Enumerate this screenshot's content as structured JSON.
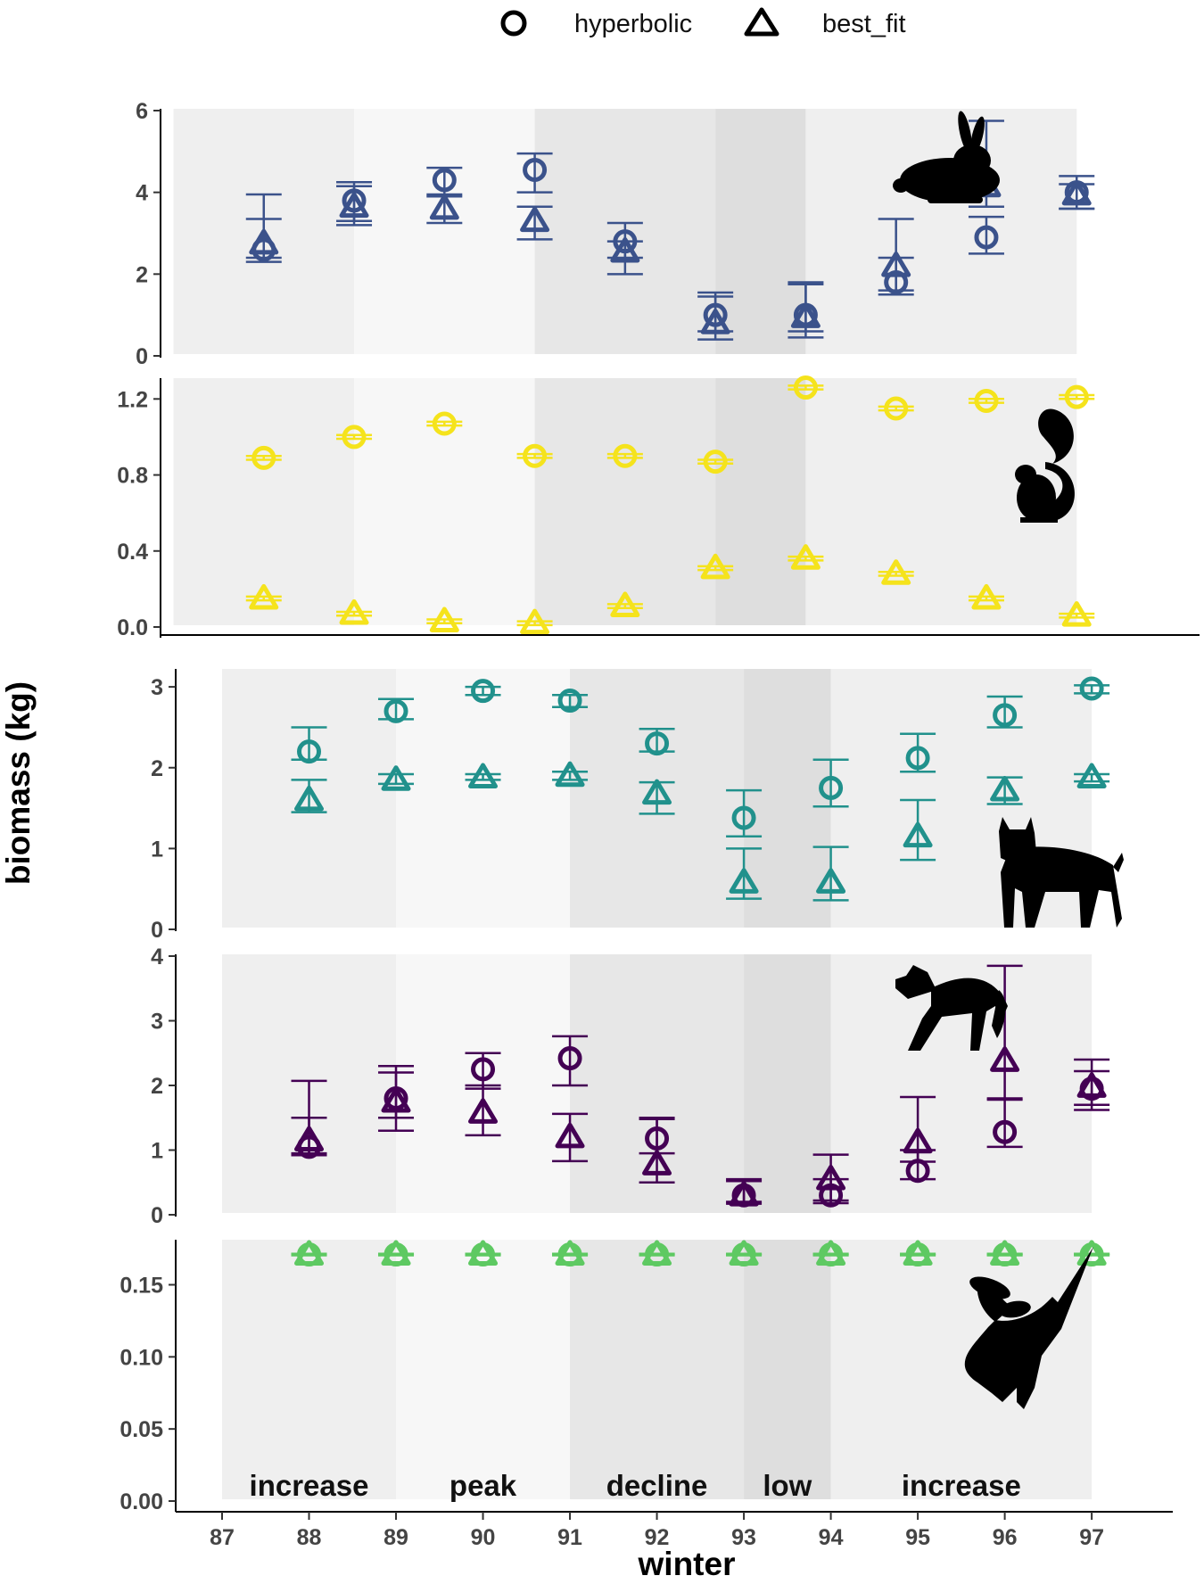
{
  "chart_data": {
    "type": "scatter",
    "xlabel": "winter",
    "ylabel": "biomass (kg)",
    "x_ticks": [
      "87",
      "88",
      "89",
      "90",
      "91",
      "92",
      "93",
      "94",
      "95",
      "96",
      "97"
    ],
    "legend": {
      "placement": "top",
      "entries": [
        {
          "name": "hyperbolic",
          "shape": "circle"
        },
        {
          "name": "best_fit",
          "shape": "triangle"
        }
      ]
    },
    "phases": [
      {
        "label": "increase",
        "from": 87,
        "to": 89,
        "shade": "#efefef"
      },
      {
        "label": "peak",
        "from": 89,
        "to": 91,
        "shade": "#f7f7f7"
      },
      {
        "label": "decline",
        "from": 91,
        "to": 93,
        "shade": "#e7e7e7"
      },
      {
        "label": "low",
        "from": 93,
        "to": 94,
        "shade": "#dedede"
      },
      {
        "label": "increase",
        "from": 94,
        "to": 97,
        "shade": "#efefef"
      }
    ],
    "panels": [
      {
        "id": "hare",
        "silhouette": "hare-silhouette-icon",
        "color": "#3b528b",
        "ylim": [
          0,
          6
        ],
        "y_ticks": [
          "0",
          "2",
          "4",
          "6"
        ],
        "series": [
          {
            "name": "hyperbolic",
            "shape": "circle",
            "x": [
              88,
              89,
              90,
              91,
              92,
              93,
              94,
              95,
              96,
              97
            ],
            "y": [
              2.6,
              3.8,
              4.3,
              4.55,
              2.8,
              1.0,
              1.0,
              1.8,
              2.9,
              4.0
            ],
            "lo": [
              2.3,
              3.3,
              3.9,
              4.0,
              2.4,
              0.6,
              0.6,
              1.5,
              2.5,
              3.6
            ],
            "hi": [
              3.35,
              4.25,
              4.6,
              4.95,
              3.25,
              1.55,
              1.75,
              2.4,
              3.4,
              4.4
            ]
          },
          {
            "name": "best_fit",
            "shape": "triangle",
            "x": [
              88,
              89,
              90,
              91,
              92,
              93,
              94,
              95,
              96,
              97
            ],
            "y": [
              2.75,
              3.65,
              3.6,
              3.3,
              2.55,
              0.8,
              0.95,
              2.2,
              4.15,
              3.95
            ],
            "lo": [
              2.4,
              3.2,
              3.25,
              2.85,
              2.0,
              0.4,
              0.45,
              1.6,
              3.65,
              3.6
            ],
            "hi": [
              3.95,
              4.15,
              3.95,
              3.65,
              2.8,
              1.45,
              1.8,
              3.35,
              5.75,
              4.2
            ]
          }
        ]
      },
      {
        "id": "squirrel",
        "silhouette": "squirrel-silhouette-icon",
        "color": "#f5e31c",
        "ylim": [
          0,
          1.3
        ],
        "y_ticks": [
          "0.0",
          "0.4",
          "0.8",
          "1.2"
        ],
        "series": [
          {
            "name": "hyperbolic",
            "shape": "circle",
            "x": [
              88,
              89,
              90,
              91,
              92,
              93,
              94,
              95,
              96,
              97
            ],
            "y": [
              0.89,
              1.0,
              1.07,
              0.9,
              0.9,
              0.87,
              1.26,
              1.15,
              1.19,
              1.21
            ],
            "lo": [
              0.88,
              0.99,
              1.06,
              0.89,
              0.89,
              0.86,
              1.25,
              1.14,
              1.18,
              1.2
            ],
            "hi": [
              0.9,
              1.01,
              1.08,
              0.91,
              0.91,
              0.88,
              1.27,
              1.16,
              1.2,
              1.22
            ]
          },
          {
            "name": "best_fit",
            "shape": "triangle",
            "x": [
              88,
              89,
              90,
              91,
              92,
              93,
              94,
              95,
              96,
              97
            ],
            "y": [
              0.15,
              0.07,
              0.03,
              0.02,
              0.11,
              0.31,
              0.36,
              0.28,
              0.15,
              0.06
            ],
            "lo": [
              0.14,
              0.06,
              0.02,
              0.01,
              0.1,
              0.3,
              0.35,
              0.27,
              0.14,
              0.05
            ],
            "hi": [
              0.16,
              0.08,
              0.04,
              0.03,
              0.12,
              0.32,
              0.37,
              0.29,
              0.16,
              0.07
            ]
          }
        ]
      },
      {
        "id": "lynx",
        "silhouette": "lynx-silhouette-icon",
        "color": "#21918c",
        "ylim": [
          0,
          3.2
        ],
        "y_ticks": [
          "0",
          "1",
          "2",
          "3"
        ],
        "series": [
          {
            "name": "hyperbolic",
            "shape": "circle",
            "x": [
              88,
              89,
              90,
              91,
              92,
              93,
              94,
              95,
              96,
              97
            ],
            "y": [
              2.2,
              2.7,
              2.95,
              2.83,
              2.3,
              1.38,
              1.75,
              2.12,
              2.65,
              2.98
            ],
            "lo": [
              2.1,
              2.6,
              2.9,
              2.75,
              2.2,
              1.15,
              1.52,
              1.95,
              2.5,
              2.92
            ],
            "hi": [
              2.5,
              2.85,
              3.0,
              2.9,
              2.48,
              1.72,
              2.1,
              2.42,
              2.88,
              3.02
            ]
          },
          {
            "name": "best_fit",
            "shape": "triangle",
            "x": [
              88,
              89,
              90,
              91,
              92,
              93,
              94,
              95,
              96,
              97
            ],
            "y": [
              1.6,
              1.85,
              1.88,
              1.9,
              1.68,
              0.58,
              0.58,
              1.15,
              1.72,
              1.88
            ],
            "lo": [
              1.45,
              1.8,
              1.85,
              1.85,
              1.43,
              0.38,
              0.36,
              0.86,
              1.55,
              1.83
            ],
            "hi": [
              1.85,
              1.92,
              1.92,
              1.95,
              1.82,
              1.0,
              1.02,
              1.6,
              1.88,
              1.92
            ]
          }
        ]
      },
      {
        "id": "coyote",
        "silhouette": "coyote-silhouette-icon",
        "color": "#440154",
        "ylim": [
          0,
          4
        ],
        "y_ticks": [
          "0",
          "1",
          "2",
          "3",
          "4"
        ],
        "series": [
          {
            "name": "hyperbolic",
            "shape": "circle",
            "x": [
              88,
              89,
              90,
              91,
              92,
              93,
              94,
              95,
              96,
              97
            ],
            "y": [
              1.05,
              1.8,
              2.25,
              2.42,
              1.18,
              0.3,
              0.3,
              0.68,
              1.28,
              1.95
            ],
            "lo": [
              0.95,
              1.5,
              1.95,
              2.0,
              0.95,
              0.2,
              0.22,
              0.55,
              1.05,
              1.7
            ],
            "hi": [
              1.5,
              2.2,
              2.5,
              2.76,
              1.48,
              0.52,
              0.55,
              1.0,
              1.78,
              2.22
            ]
          },
          {
            "name": "best_fit",
            "shape": "triangle",
            "x": [
              88,
              89,
              90,
              91,
              92,
              93,
              94,
              95,
              96,
              97
            ],
            "y": [
              1.15,
              1.75,
              1.58,
              1.2,
              0.78,
              0.3,
              0.55,
              1.12,
              2.38,
              1.98
            ],
            "lo": [
              0.92,
              1.3,
              1.23,
              0.83,
              0.5,
              0.17,
              0.18,
              0.82,
              1.8,
              1.62
            ],
            "hi": [
              2.07,
              2.3,
              2.0,
              1.56,
              1.5,
              0.55,
              0.93,
              1.82,
              3.85,
              2.4
            ]
          }
        ]
      },
      {
        "id": "owl",
        "silhouette": "owl-silhouette-icon",
        "color": "#5ec962",
        "ylim": [
          0,
          0.18
        ],
        "y_ticks": [
          "0.00",
          "0.05",
          "0.10",
          "0.15"
        ],
        "series": [
          {
            "name": "hyperbolic",
            "shape": "circle",
            "x": [
              88,
              89,
              90,
              91,
              92,
              93,
              94,
              95,
              96,
              97
            ],
            "y": [
              0.171,
              0.171,
              0.171,
              0.171,
              0.171,
              0.171,
              0.171,
              0.171,
              0.171,
              0.171
            ],
            "lo": [
              0.1705,
              0.1705,
              0.1705,
              0.1705,
              0.1705,
              0.1705,
              0.1705,
              0.1705,
              0.1705,
              0.1705
            ],
            "hi": [
              0.1715,
              0.1715,
              0.1715,
              0.1715,
              0.1715,
              0.1715,
              0.1715,
              0.1715,
              0.1715,
              0.1715
            ]
          },
          {
            "name": "best_fit",
            "shape": "triangle",
            "x": [
              88,
              89,
              90,
              91,
              92,
              93,
              94,
              95,
              96,
              97
            ],
            "y": [
              0.171,
              0.171,
              0.171,
              0.171,
              0.171,
              0.171,
              0.171,
              0.171,
              0.171,
              0.171
            ],
            "lo": [
              0.1705,
              0.1705,
              0.1705,
              0.1705,
              0.1705,
              0.1705,
              0.1705,
              0.1705,
              0.1705,
              0.1705
            ],
            "hi": [
              0.1715,
              0.1715,
              0.1715,
              0.1715,
              0.1715,
              0.1715,
              0.1715,
              0.1715,
              0.1715,
              0.1715
            ]
          }
        ]
      }
    ]
  }
}
